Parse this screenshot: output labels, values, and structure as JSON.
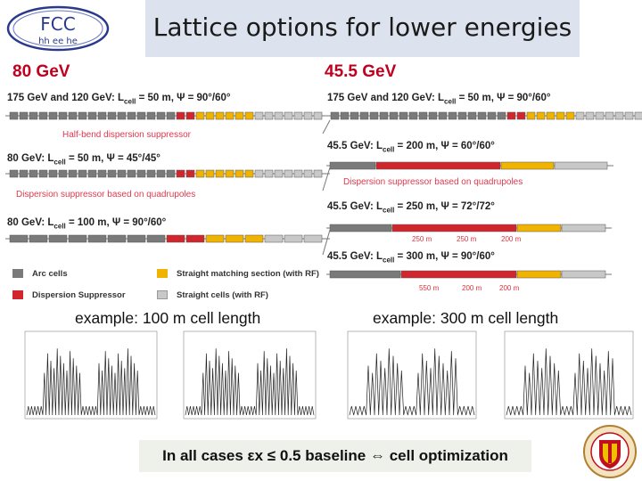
{
  "title": "Lattice options for lower energies",
  "logo": {
    "main": "FCC",
    "sub": "hh ee he"
  },
  "left": {
    "energy": "80 GeV",
    "row1": {
      "pre": "175 GeV and 120 GeV: L",
      "sub": "cell",
      "post": " = 50 m, Ψ = 90°/60°"
    },
    "half_ds": "Half-bend dispersion suppressor",
    "row2": {
      "pre": "80 GeV: L",
      "sub": "cell",
      "post": " = 50 m, Ψ = 45°/45°"
    },
    "ds_quad": "Dispersion suppressor based on quadrupoles",
    "row3": {
      "pre": "80 GeV: L",
      "sub": "cell",
      "post": " = 100 m, Ψ = 90°/60°"
    },
    "legend": {
      "arc": "Arc cells",
      "ds": "Dispersion Suppressor",
      "match": "Straight matching section (with RF)",
      "straight": "Straight cells (with RF)"
    },
    "example": "example: 100 m cell length"
  },
  "right": {
    "energy": "45.5 GeV",
    "row1": {
      "pre": "175 GeV and 120 GeV: L",
      "sub": "cell",
      "post": " = 50 m, Ψ = 90°/60°"
    },
    "row2": {
      "pre": "45.5 GeV: L",
      "sub": "cell",
      "post": " = 200 m, Ψ = 60°/60°"
    },
    "ds_quad": "Dispersion suppressor based on quadrupoles",
    "row3": {
      "pre": "45.5 GeV: L",
      "sub": "cell",
      "post": " = 250 m, Ψ = 72°/72°"
    },
    "row3_cells": [
      "250 m",
      "250 m",
      "200 m"
    ],
    "row4": {
      "pre": "45.5 GeV: L",
      "sub": "cell",
      "post": " = 300 m, Ψ = 90°/60°"
    },
    "row4_cells": [
      "550 m",
      "200 m",
      "200 m"
    ],
    "example": "example: 300 m cell length"
  },
  "bottom": "In all cases εx ≤ 0.5 baseline ⇔ cell optimization",
  "colors": {
    "arc": "#7a7a7a",
    "ds": "#d0262e",
    "match": "#f0b400",
    "straight": "#c8c8c8",
    "accent": "#c0001e"
  }
}
